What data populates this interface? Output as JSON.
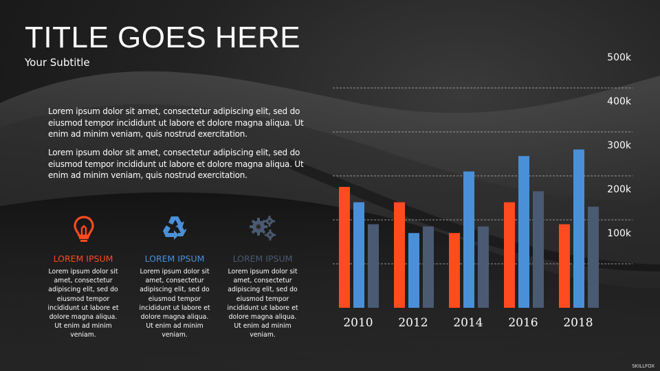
{
  "header": {
    "title": "TITLE GOES HERE",
    "subtitle": "Your Subtitle"
  },
  "paragraphs": [
    "Lorem ipsum dolor sit amet, consectetur adipiscing elit, sed do eiusmod tempor incididunt ut labore et dolore magna aliqua. Ut enim ad minim veniam, quis nostrud exercitation.",
    "Lorem ipsum dolor sit amet, consectetur adipiscing elit, sed do eiusmod tempor incididunt ut labore et dolore magna aliqua. Ut enim ad minim veniam, quis nostrud exercitation."
  ],
  "columns": [
    {
      "icon": "lightbulb-icon",
      "color": "#ff4b1f",
      "heading": "LOREM IPSUM",
      "body": "Lorem ipsum dolor sit amet, consectetur adipiscing elit, sed do eiusmod tempor incididunt ut labore et dolore magna aliqua. Ut enim ad minim veniam."
    },
    {
      "icon": "recycle-icon",
      "color": "#4a90d9",
      "heading": "LOREM IPSUM",
      "body": "Lorem ipsum dolor sit amet, consectetur adipiscing elit, sed do eiusmod tempor incididunt ut labore et dolore magna aliqua. Ut enim ad minim veniam."
    },
    {
      "icon": "gears-icon",
      "color": "#4a5a72",
      "heading": "LOREM IPSUM",
      "body": "Lorem ipsum dolor sit amet, consectetur adipiscing elit, sed do eiusmod tempor incididunt ut labore et dolore magna aliqua. Ut enim ad minim veniam."
    }
  ],
  "chart_data": {
    "type": "bar",
    "categories": [
      "2010",
      "2012",
      "2014",
      "2016",
      "2018"
    ],
    "series": [
      {
        "color": "#ff4b1f",
        "values": [
          275,
          240,
          170,
          240,
          190
        ]
      },
      {
        "color": "#4a90d9",
        "values": [
          240,
          170,
          310,
          345,
          360
        ]
      },
      {
        "color": "#4a5a72",
        "values": [
          190,
          185,
          185,
          265,
          230
        ]
      }
    ],
    "ylim": [
      0,
      500
    ],
    "yticks": [
      "100k",
      "200k",
      "300k",
      "400k",
      "500k"
    ],
    "grid": true,
    "grid_style": "dashed"
  },
  "logo": "SKILLFOX"
}
